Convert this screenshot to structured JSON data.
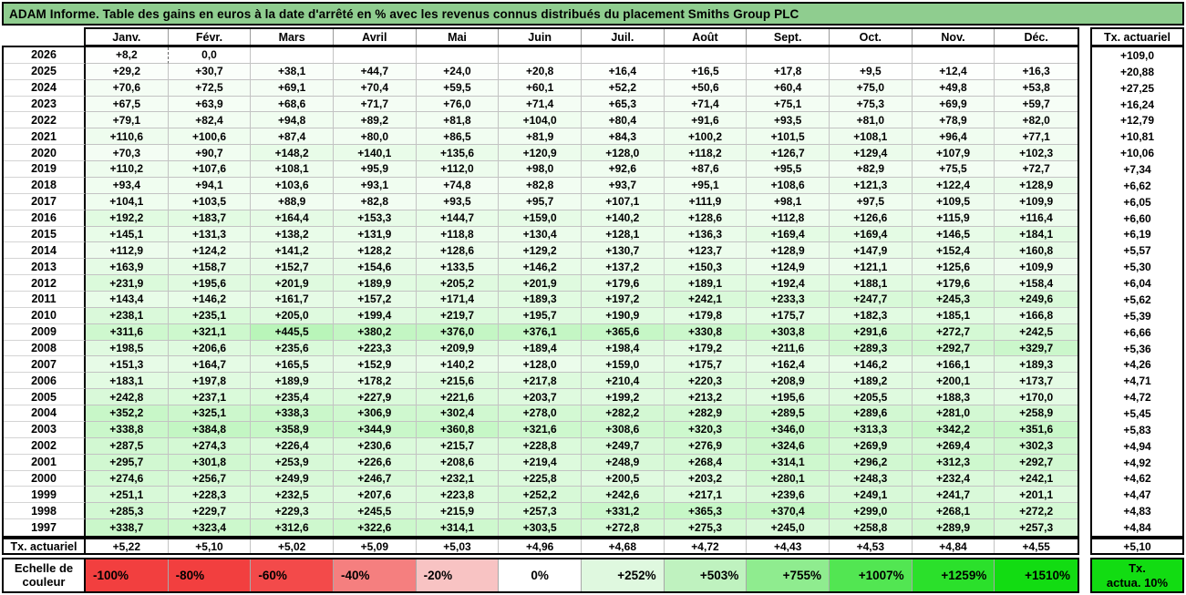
{
  "chart_data": {
    "type": "heatmap",
    "title": "ADAM Informe. Table des gains en euros à la date d'arrêté en % avec les revenus connus distribués du placement Smiths Group PLC",
    "columns": [
      "Janv.",
      "Févr.",
      "Mars",
      "Avril",
      "Mai",
      "Juin",
      "Juil.",
      "Août",
      "Sept.",
      "Oct.",
      "Nov.",
      "Déc."
    ],
    "tx_header": "Tx. actuariel",
    "rows": [
      {
        "year": "2026",
        "values": [
          "+8,2",
          "0,0",
          "",
          "",
          "",
          "",
          "",
          "",
          "",
          "",
          "",
          ""
        ],
        "tx": "+109,0"
      },
      {
        "year": "2025",
        "values": [
          "+29,2",
          "+30,7",
          "+38,1",
          "+44,7",
          "+24,0",
          "+20,8",
          "+16,4",
          "+16,5",
          "+17,8",
          "+9,5",
          "+12,4",
          "+16,3"
        ],
        "tx": "+20,88"
      },
      {
        "year": "2024",
        "values": [
          "+70,6",
          "+72,5",
          "+69,1",
          "+70,4",
          "+59,5",
          "+60,1",
          "+52,2",
          "+50,6",
          "+60,4",
          "+75,0",
          "+49,8",
          "+53,8"
        ],
        "tx": "+27,25"
      },
      {
        "year": "2023",
        "values": [
          "+67,5",
          "+63,9",
          "+68,6",
          "+71,7",
          "+76,0",
          "+71,4",
          "+65,3",
          "+71,4",
          "+75,1",
          "+75,3",
          "+69,9",
          "+59,7"
        ],
        "tx": "+16,24"
      },
      {
        "year": "2022",
        "values": [
          "+79,1",
          "+82,4",
          "+94,8",
          "+89,2",
          "+81,8",
          "+104,0",
          "+80,4",
          "+91,6",
          "+93,5",
          "+81,0",
          "+78,9",
          "+82,0"
        ],
        "tx": "+12,79"
      },
      {
        "year": "2021",
        "values": [
          "+110,6",
          "+100,6",
          "+87,4",
          "+80,0",
          "+86,5",
          "+81,9",
          "+84,3",
          "+100,2",
          "+101,5",
          "+108,1",
          "+96,4",
          "+77,1"
        ],
        "tx": "+10,81"
      },
      {
        "year": "2020",
        "values": [
          "+70,3",
          "+90,7",
          "+148,2",
          "+140,1",
          "+135,6",
          "+120,9",
          "+128,0",
          "+118,2",
          "+126,7",
          "+129,4",
          "+107,9",
          "+102,3"
        ],
        "tx": "+10,06"
      },
      {
        "year": "2019",
        "values": [
          "+110,2",
          "+107,6",
          "+108,1",
          "+95,9",
          "+112,0",
          "+98,0",
          "+92,6",
          "+87,6",
          "+95,5",
          "+82,9",
          "+75,5",
          "+72,7"
        ],
        "tx": "+7,34"
      },
      {
        "year": "2018",
        "values": [
          "+93,4",
          "+94,1",
          "+103,6",
          "+93,1",
          "+74,8",
          "+82,8",
          "+93,7",
          "+95,1",
          "+108,6",
          "+121,3",
          "+122,4",
          "+128,9"
        ],
        "tx": "+6,62"
      },
      {
        "year": "2017",
        "values": [
          "+104,1",
          "+103,5",
          "+88,9",
          "+82,8",
          "+93,5",
          "+95,7",
          "+107,1",
          "+111,9",
          "+98,1",
          "+97,5",
          "+109,5",
          "+109,9"
        ],
        "tx": "+6,05"
      },
      {
        "year": "2016",
        "values": [
          "+192,2",
          "+183,7",
          "+164,4",
          "+153,3",
          "+144,7",
          "+159,0",
          "+140,2",
          "+128,6",
          "+112,8",
          "+126,6",
          "+115,9",
          "+116,4"
        ],
        "tx": "+6,60"
      },
      {
        "year": "2015",
        "values": [
          "+145,1",
          "+131,3",
          "+138,2",
          "+131,9",
          "+118,8",
          "+130,4",
          "+128,1",
          "+136,3",
          "+169,4",
          "+169,4",
          "+146,5",
          "+184,1"
        ],
        "tx": "+6,19"
      },
      {
        "year": "2014",
        "values": [
          "+112,9",
          "+124,2",
          "+141,2",
          "+128,2",
          "+128,6",
          "+129,2",
          "+130,7",
          "+123,7",
          "+128,9",
          "+147,9",
          "+152,4",
          "+160,8"
        ],
        "tx": "+5,57"
      },
      {
        "year": "2013",
        "values": [
          "+163,9",
          "+158,7",
          "+152,7",
          "+154,6",
          "+133,5",
          "+146,2",
          "+137,2",
          "+150,3",
          "+124,9",
          "+121,1",
          "+125,6",
          "+109,9"
        ],
        "tx": "+5,30"
      },
      {
        "year": "2012",
        "values": [
          "+231,9",
          "+195,6",
          "+201,9",
          "+189,9",
          "+205,2",
          "+201,9",
          "+179,6",
          "+189,1",
          "+192,4",
          "+188,1",
          "+179,6",
          "+158,4"
        ],
        "tx": "+6,04"
      },
      {
        "year": "2011",
        "values": [
          "+143,4",
          "+146,2",
          "+161,7",
          "+157,2",
          "+171,4",
          "+189,3",
          "+197,2",
          "+242,1",
          "+233,3",
          "+247,7",
          "+245,3",
          "+249,6"
        ],
        "tx": "+5,62"
      },
      {
        "year": "2010",
        "values": [
          "+238,1",
          "+235,1",
          "+205,0",
          "+199,4",
          "+219,7",
          "+195,7",
          "+190,9",
          "+179,8",
          "+175,7",
          "+182,3",
          "+185,1",
          "+166,8"
        ],
        "tx": "+5,39"
      },
      {
        "year": "2009",
        "values": [
          "+311,6",
          "+321,1",
          "+445,5",
          "+380,2",
          "+376,0",
          "+376,1",
          "+365,6",
          "+330,8",
          "+303,8",
          "+291,6",
          "+272,7",
          "+242,5"
        ],
        "tx": "+6,66"
      },
      {
        "year": "2008",
        "values": [
          "+198,5",
          "+206,6",
          "+235,6",
          "+223,3",
          "+209,9",
          "+189,4",
          "+198,4",
          "+179,2",
          "+211,6",
          "+289,3",
          "+292,7",
          "+329,7"
        ],
        "tx": "+5,36"
      },
      {
        "year": "2007",
        "values": [
          "+151,3",
          "+164,7",
          "+165,5",
          "+152,9",
          "+140,2",
          "+128,0",
          "+159,0",
          "+175,7",
          "+162,4",
          "+146,2",
          "+166,1",
          "+189,3"
        ],
        "tx": "+4,26"
      },
      {
        "year": "2006",
        "values": [
          "+183,1",
          "+197,8",
          "+189,9",
          "+178,2",
          "+215,6",
          "+217,8",
          "+210,4",
          "+220,3",
          "+208,9",
          "+189,2",
          "+200,1",
          "+173,7"
        ],
        "tx": "+4,71"
      },
      {
        "year": "2005",
        "values": [
          "+242,8",
          "+237,1",
          "+235,4",
          "+227,9",
          "+221,6",
          "+203,7",
          "+199,2",
          "+213,2",
          "+195,6",
          "+205,5",
          "+188,3",
          "+170,0"
        ],
        "tx": "+4,72"
      },
      {
        "year": "2004",
        "values": [
          "+352,2",
          "+325,1",
          "+338,3",
          "+306,9",
          "+302,4",
          "+278,0",
          "+282,2",
          "+282,9",
          "+289,5",
          "+289,6",
          "+281,0",
          "+258,9"
        ],
        "tx": "+5,45"
      },
      {
        "year": "2003",
        "values": [
          "+338,8",
          "+384,8",
          "+358,9",
          "+344,9",
          "+360,8",
          "+321,6",
          "+308,6",
          "+320,3",
          "+346,0",
          "+313,3",
          "+342,2",
          "+351,6"
        ],
        "tx": "+5,83"
      },
      {
        "year": "2002",
        "values": [
          "+287,5",
          "+274,3",
          "+226,4",
          "+230,6",
          "+215,7",
          "+228,8",
          "+249,7",
          "+276,9",
          "+324,6",
          "+269,9",
          "+269,4",
          "+302,3"
        ],
        "tx": "+4,94"
      },
      {
        "year": "2001",
        "values": [
          "+295,7",
          "+301,8",
          "+253,9",
          "+226,6",
          "+208,6",
          "+219,4",
          "+248,9",
          "+268,4",
          "+314,1",
          "+296,2",
          "+312,3",
          "+292,7"
        ],
        "tx": "+4,92"
      },
      {
        "year": "2000",
        "values": [
          "+274,6",
          "+256,7",
          "+249,9",
          "+246,7",
          "+232,1",
          "+225,8",
          "+200,5",
          "+203,2",
          "+280,1",
          "+248,3",
          "+232,4",
          "+242,1"
        ],
        "tx": "+4,62"
      },
      {
        "year": "1999",
        "values": [
          "+251,1",
          "+228,3",
          "+232,5",
          "+207,6",
          "+223,8",
          "+252,2",
          "+242,6",
          "+217,1",
          "+239,6",
          "+249,1",
          "+241,7",
          "+201,1"
        ],
        "tx": "+4,47"
      },
      {
        "year": "1998",
        "values": [
          "+285,3",
          "+229,7",
          "+229,3",
          "+245,5",
          "+215,9",
          "+257,3",
          "+331,2",
          "+365,3",
          "+370,4",
          "+299,0",
          "+268,1",
          "+272,2"
        ],
        "tx": "+4,83"
      },
      {
        "year": "1997",
        "values": [
          "+338,7",
          "+323,4",
          "+312,6",
          "+322,6",
          "+314,1",
          "+303,5",
          "+272,8",
          "+275,3",
          "+245,0",
          "+258,8",
          "+289,9",
          "+257,3"
        ],
        "tx": "+4,84"
      }
    ],
    "tx_row": {
      "label": "Tx. actuariel",
      "values": [
        "+5,22",
        "+5,10",
        "+5,02",
        "+5,09",
        "+5,03",
        "+4,96",
        "+4,68",
        "+4,72",
        "+4,43",
        "+4,53",
        "+4,84",
        "+4,55"
      ],
      "tx": "+5,10"
    },
    "color_scale": {
      "zero_value": 0,
      "max_value": 1510,
      "zero_color": "#FFFFFF",
      "max_color": "#12DC12",
      "title_bg": "#8FCD8F"
    },
    "legend": {
      "label": "Echelle de couleur",
      "items": [
        {
          "label": "-100%",
          "color": "#F23F3F",
          "align": "left"
        },
        {
          "label": "-80%",
          "color": "#F23F3F",
          "align": "left"
        },
        {
          "label": "-60%",
          "color": "#F34A4A",
          "align": "left"
        },
        {
          "label": "-40%",
          "color": "#F57F7F",
          "align": "left"
        },
        {
          "label": "-20%",
          "color": "#F8C3C3",
          "align": "left"
        },
        {
          "label": "0%",
          "color": "#FFFFFF",
          "align": "center"
        },
        {
          "label": "+252%",
          "color": "#DFF8DF",
          "align": "right"
        },
        {
          "label": "+503%",
          "color": "#BFF2BF",
          "align": "right"
        },
        {
          "label": "+755%",
          "color": "#8FEC8F",
          "align": "right"
        },
        {
          "label": "+1007%",
          "color": "#52E652",
          "align": "right"
        },
        {
          "label": "+1259%",
          "color": "#2BE02B",
          "align": "right"
        },
        {
          "label": "+1510%",
          "color": "#12DC12",
          "align": "right"
        }
      ],
      "tx_box": {
        "line1": "Tx.",
        "line2": "actua. 10%",
        "color": "#12DC12"
      }
    }
  }
}
